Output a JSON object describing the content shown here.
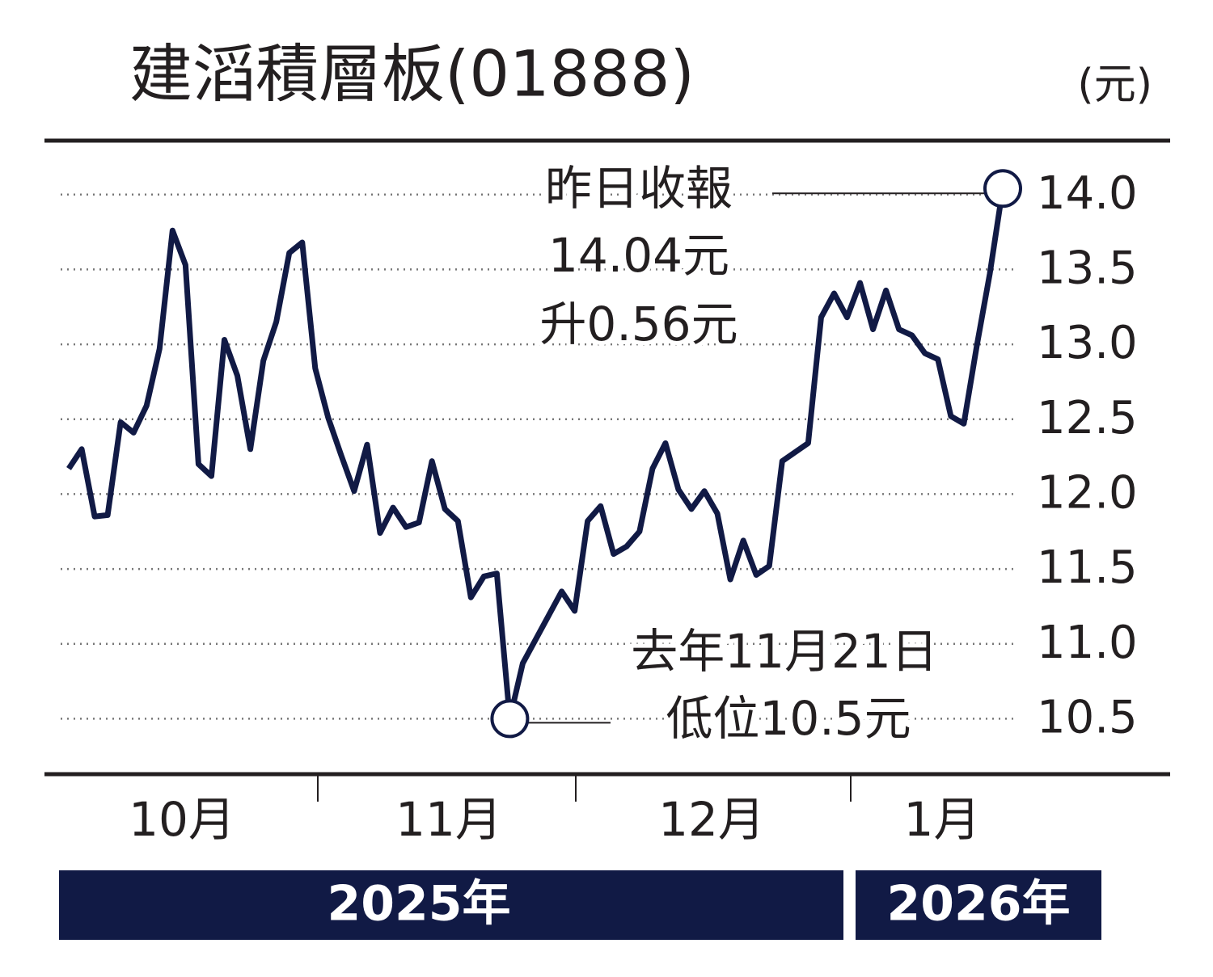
{
  "chart_data": {
    "type": "line",
    "title": "建滔積層板(01888)",
    "unit_label": "(元)",
    "values": [
      12.17,
      12.3,
      11.85,
      11.86,
      12.48,
      12.41,
      12.59,
      12.97,
      13.76,
      13.53,
      12.2,
      12.12,
      13.03,
      12.79,
      12.3,
      12.89,
      13.15,
      13.61,
      13.68,
      12.84,
      12.51,
      12.26,
      12.02,
      12.33,
      11.74,
      11.91,
      11.78,
      11.81,
      12.22,
      11.9,
      11.82,
      11.31,
      11.45,
      11.47,
      10.5,
      10.87,
      11.03,
      11.19,
      11.35,
      11.22,
      11.82,
      11.92,
      11.6,
      11.65,
      11.75,
      12.17,
      12.34,
      12.03,
      11.9,
      12.02,
      11.87,
      11.43,
      11.69,
      11.46,
      11.52,
      12.22,
      12.28,
      12.34,
      13.18,
      13.34,
      13.18,
      13.41,
      13.1,
      13.36,
      13.1,
      13.06,
      12.94,
      12.9,
      12.52,
      12.47,
      12.99,
      13.47,
      14.04
    ],
    "color": "#111a45",
    "ylim": [
      10.13,
      14.36
    ],
    "yticks": [
      {
        "value": 10.5,
        "label": "10.5"
      },
      {
        "value": 11,
        "label": "11.0"
      },
      {
        "value": 11.5,
        "label": "11.5"
      },
      {
        "value": 12,
        "label": "12.0"
      },
      {
        "value": 12.5,
        "label": "12.5"
      },
      {
        "value": 13,
        "label": "13.0"
      },
      {
        "value": 13.5,
        "label": "13.5"
      },
      {
        "value": 14,
        "label": "14.0"
      }
    ],
    "grid": true,
    "months": [
      "10月",
      "11月",
      "12月",
      "1月"
    ],
    "years": [
      "2025年",
      "2026年"
    ],
    "annotations": {
      "last": [
        "昨日收報",
        "14.04元",
        "升0.56元"
      ],
      "low": [
        "去年11月21日",
        "低位10.5元"
      ]
    }
  }
}
